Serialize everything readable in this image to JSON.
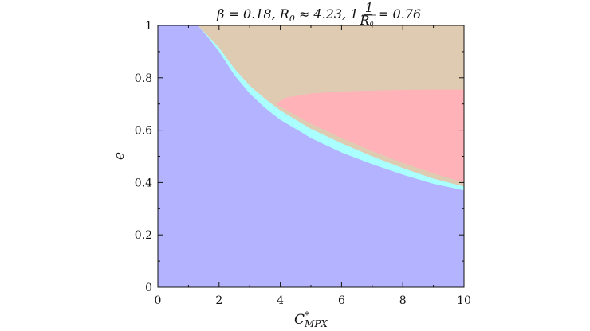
{
  "chart_data": {
    "type": "area",
    "title": "β = 0.18, R₀ ≈ 4.23, 1 − 1/R₀ = 0.76",
    "title_parts": {
      "main": "β = 0.18, R",
      "sub0": "0",
      "mid": " ≈ 4.23, 1 − ",
      "frac_num": "1",
      "frac_den": "R",
      "frac_den_sub": "0",
      "end": " = 0.76"
    },
    "xlabel": "C",
    "xlabel_sup": "*",
    "xlabel_sub": "MPX",
    "ylabel": "e",
    "xlim": [
      0,
      10
    ],
    "ylim": [
      0,
      1
    ],
    "x_ticks": [
      "0",
      "2",
      "4",
      "6",
      "8",
      "10"
    ],
    "y_ticks": [
      "0",
      "0.2",
      "0.4",
      "0.6",
      "0.8",
      "1"
    ],
    "grid": false,
    "regions": [
      {
        "color": "#b3b3ff",
        "boundary_upper": [
          [
            0,
            1
          ],
          [
            1.3,
            1
          ],
          [
            1.6,
            0.96
          ],
          [
            2.0,
            0.9
          ],
          [
            2.5,
            0.81
          ],
          [
            3.0,
            0.74
          ],
          [
            3.5,
            0.685
          ],
          [
            4.0,
            0.64
          ],
          [
            5.0,
            0.57
          ],
          [
            6.0,
            0.515
          ],
          [
            7.0,
            0.47
          ],
          [
            8.0,
            0.43
          ],
          [
            9.0,
            0.395
          ],
          [
            10.0,
            0.37
          ]
        ]
      },
      {
        "color": "#aaffff",
        "boundary_upper": [
          [
            1.3,
            1
          ],
          [
            1.6,
            0.965
          ],
          [
            2.0,
            0.915
          ],
          [
            2.5,
            0.835
          ],
          [
            3.0,
            0.77
          ],
          [
            3.5,
            0.72
          ],
          [
            4.0,
            0.675
          ],
          [
            5.0,
            0.605
          ],
          [
            6.0,
            0.55
          ],
          [
            7.0,
            0.5
          ],
          [
            8.0,
            0.455
          ],
          [
            9.0,
            0.415
          ],
          [
            10.0,
            0.385
          ]
        ]
      },
      {
        "color": "#ffb3b9",
        "boundary_top": [
          [
            3.85,
            0.7
          ],
          [
            4.2,
            0.725
          ],
          [
            5.0,
            0.74
          ],
          [
            6.0,
            0.748
          ],
          [
            7.0,
            0.751
          ],
          [
            8.0,
            0.754
          ],
          [
            9.0,
            0.755
          ],
          [
            10.0,
            0.755
          ]
        ],
        "boundary_bottom": [
          [
            3.85,
            0.7
          ],
          [
            4.0,
            0.69
          ],
          [
            5.0,
            0.625
          ],
          [
            6.0,
            0.57
          ],
          [
            7.0,
            0.52
          ],
          [
            8.0,
            0.475
          ],
          [
            9.0,
            0.435
          ],
          [
            10.0,
            0.4
          ]
        ]
      },
      {
        "color": "#dfcbb1",
        "boundary_lower": [
          [
            1.3,
            1
          ],
          [
            1.6,
            0.965
          ],
          [
            2.0,
            0.915
          ],
          [
            2.5,
            0.835
          ],
          [
            3.0,
            0.77
          ],
          [
            3.5,
            0.72
          ],
          [
            3.85,
            0.7
          ],
          [
            4.2,
            0.725
          ],
          [
            5.0,
            0.74
          ],
          [
            6.0,
            0.748
          ],
          [
            7.0,
            0.751
          ],
          [
            8.0,
            0.754
          ],
          [
            9.0,
            0.755
          ],
          [
            10.0,
            0.755
          ]
        ]
      }
    ]
  }
}
